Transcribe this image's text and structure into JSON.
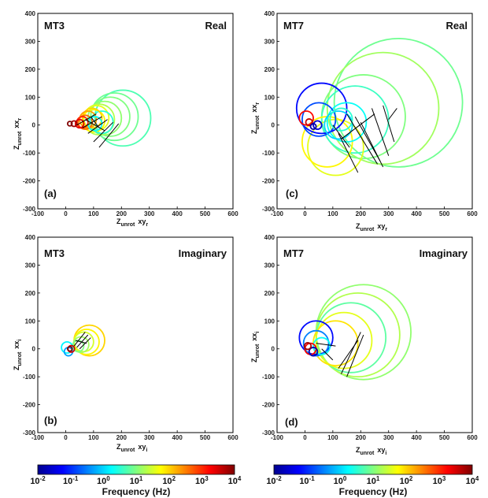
{
  "chart_data": [
    {
      "panel": "(a)",
      "station": "MT3",
      "component": "Real",
      "type": "scatter",
      "xlabel_main": "Z",
      "xlabel_sub": "unrot",
      "xlabel_tail": "xy",
      "xlabel_tail_sub": "r",
      "ylabel_main": "Z",
      "ylabel_sub": "unrot",
      "ylabel_tail": "xx",
      "ylabel_tail_sub": "r",
      "xlim": [
        -100,
        600
      ],
      "ylim": [
        -300,
        400
      ],
      "xticks": [
        "-100",
        "0",
        "100",
        "200",
        "300",
        "400",
        "500",
        "600"
      ],
      "yticks": [
        "400",
        "300",
        "200",
        "100",
        "0",
        "-100",
        "-200",
        "-300"
      ],
      "circles": [
        {
          "x": 205,
          "y": 25,
          "r": 100,
          "logf": 0.7
        },
        {
          "x": 175,
          "y": 30,
          "r": 85,
          "logf": 0.9
        },
        {
          "x": 160,
          "y": 30,
          "r": 70,
          "logf": 1.0
        },
        {
          "x": 140,
          "y": 25,
          "r": 60,
          "logf": 1.1
        },
        {
          "x": 120,
          "y": 20,
          "r": 55,
          "logf": 1.3
        },
        {
          "x": 110,
          "y": 25,
          "r": 45,
          "logf": 1.6
        },
        {
          "x": 100,
          "y": 15,
          "r": 40,
          "logf": 1.8
        },
        {
          "x": 95,
          "y": 25,
          "r": 35,
          "logf": 2.0
        },
        {
          "x": 80,
          "y": 20,
          "r": 30,
          "logf": 2.3
        },
        {
          "x": 70,
          "y": 10,
          "r": 25,
          "logf": 2.6
        },
        {
          "x": 60,
          "y": 10,
          "r": 20,
          "logf": 3.0
        },
        {
          "x": 50,
          "y": 5,
          "r": 15,
          "logf": 3.4
        },
        {
          "x": 30,
          "y": 5,
          "r": 10,
          "logf": 3.8
        },
        {
          "x": 15,
          "y": 5,
          "r": 8,
          "logf": 4.0
        },
        {
          "x": 130,
          "y": 10,
          "r": 40,
          "logf": 0.5
        },
        {
          "x": 105,
          "y": 5,
          "r": 25,
          "logf": 0.3
        }
      ],
      "segments": [
        {
          "x1": 40,
          "y1": 0,
          "x2": 110,
          "y2": 40
        },
        {
          "x1": 60,
          "y1": -10,
          "x2": 130,
          "y2": 30
        },
        {
          "x1": 80,
          "y1": -30,
          "x2": 150,
          "y2": 20
        },
        {
          "x1": 100,
          "y1": -60,
          "x2": 170,
          "y2": 10
        },
        {
          "x1": 120,
          "y1": -80,
          "x2": 190,
          "y2": 5
        },
        {
          "x1": 70,
          "y1": 20,
          "x2": 140,
          "y2": -20
        },
        {
          "x1": 90,
          "y1": 30,
          "x2": 120,
          "y2": -10
        }
      ]
    },
    {
      "panel": "(b)",
      "station": "MT3",
      "component": "Imaginary",
      "type": "scatter",
      "xlabel_main": "Z",
      "xlabel_sub": "unrot",
      "xlabel_tail": "xy",
      "xlabel_tail_sub": "i",
      "ylabel_main": "Z",
      "ylabel_sub": "unrot",
      "ylabel_tail": "xx",
      "ylabel_tail_sub": "i",
      "xlim": [
        -100,
        600
      ],
      "ylim": [
        -300,
        400
      ],
      "xticks": [
        "-100",
        "0",
        "100",
        "200",
        "300",
        "400",
        "500",
        "600"
      ],
      "yticks": [
        "400",
        "300",
        "200",
        "100",
        "0",
        "-100",
        "-200",
        "-300"
      ],
      "circles": [
        {
          "x": 85,
          "y": 30,
          "r": 55,
          "logf": 2.0
        },
        {
          "x": 75,
          "y": 25,
          "r": 45,
          "logf": 1.8
        },
        {
          "x": 65,
          "y": 25,
          "r": 35,
          "logf": 1.5
        },
        {
          "x": 55,
          "y": 15,
          "r": 28,
          "logf": 1.2
        },
        {
          "x": 45,
          "y": 10,
          "r": 20,
          "logf": 1.0
        },
        {
          "x": 5,
          "y": 5,
          "r": 20,
          "logf": 0.2
        },
        {
          "x": 10,
          "y": -10,
          "r": 15,
          "logf": -0.3
        },
        {
          "x": 20,
          "y": 0,
          "r": 12,
          "logf": 3.5
        },
        {
          "x": 15,
          "y": 0,
          "r": 8,
          "logf": 4.0
        }
      ],
      "segments": [
        {
          "x1": 30,
          "y1": 10,
          "x2": 70,
          "y2": 60
        },
        {
          "x1": 40,
          "y1": 5,
          "x2": 80,
          "y2": 50
        },
        {
          "x1": 50,
          "y1": 0,
          "x2": 90,
          "y2": 40
        },
        {
          "x1": 35,
          "y1": 30,
          "x2": 75,
          "y2": 20
        }
      ]
    },
    {
      "panel": "(c)",
      "station": "MT7",
      "component": "Real",
      "type": "scatter",
      "xlabel_main": "Z",
      "xlabel_sub": "unrot",
      "xlabel_tail": "xy",
      "xlabel_tail_sub": "r",
      "ylabel_main": "Z",
      "ylabel_sub": "unrot",
      "ylabel_tail": "xx",
      "ylabel_tail_sub": "r",
      "xlim": [
        -100,
        600
      ],
      "ylim": [
        -300,
        400
      ],
      "xticks": [
        "-100",
        "0",
        "100",
        "200",
        "300",
        "400",
        "500",
        "600"
      ],
      "yticks": [
        "400",
        "300",
        "200",
        "100",
        "0",
        "-100",
        "-200",
        "-300"
      ],
      "circles": [
        {
          "x": 335,
          "y": 80,
          "r": 230,
          "logf": 0.9
        },
        {
          "x": 280,
          "y": 60,
          "r": 200,
          "logf": 1.2
        },
        {
          "x": 210,
          "y": 30,
          "r": 150,
          "logf": 1.0
        },
        {
          "x": 180,
          "y": 20,
          "r": 120,
          "logf": 0.6
        },
        {
          "x": 110,
          "y": -80,
          "r": 100,
          "logf": 1.6
        },
        {
          "x": 80,
          "y": -60,
          "r": 90,
          "logf": 1.8
        },
        {
          "x": 60,
          "y": 60,
          "r": 90,
          "logf": -1.2
        },
        {
          "x": 50,
          "y": 20,
          "r": 60,
          "logf": -0.8
        },
        {
          "x": 150,
          "y": 10,
          "r": 70,
          "logf": 0.3
        },
        {
          "x": 120,
          "y": 0,
          "r": 50,
          "logf": 0.0
        },
        {
          "x": 130,
          "y": 20,
          "r": 40,
          "logf": 0.5
        },
        {
          "x": 5,
          "y": 25,
          "r": 25,
          "logf": 3.2
        },
        {
          "x": 15,
          "y": 10,
          "r": 12,
          "logf": 3.6
        },
        {
          "x": 45,
          "y": 0,
          "r": 15,
          "logf": -1.5
        },
        {
          "x": 30,
          "y": -5,
          "r": 10,
          "logf": -1.8
        }
      ],
      "segments": [
        {
          "x1": 120,
          "y1": -30,
          "x2": 190,
          "y2": -170
        },
        {
          "x1": 150,
          "y1": 40,
          "x2": 260,
          "y2": -140
        },
        {
          "x1": 180,
          "y1": 30,
          "x2": 270,
          "y2": -130
        },
        {
          "x1": 200,
          "y1": 10,
          "x2": 280,
          "y2": -150
        },
        {
          "x1": 240,
          "y1": 60,
          "x2": 300,
          "y2": -110
        },
        {
          "x1": 280,
          "y1": 70,
          "x2": 320,
          "y2": -60
        },
        {
          "x1": 100,
          "y1": 0,
          "x2": 160,
          "y2": -80
        },
        {
          "x1": 130,
          "y1": -50,
          "x2": 250,
          "y2": 40
        },
        {
          "x1": 300,
          "y1": 20,
          "x2": 330,
          "y2": 60
        }
      ]
    },
    {
      "panel": "(d)",
      "station": "MT7",
      "component": "Imaginary",
      "type": "scatter",
      "xlabel_main": "Z",
      "xlabel_sub": "unrot",
      "xlabel_tail": "xy",
      "xlabel_tail_sub": "i",
      "ylabel_main": "Z",
      "ylabel_sub": "unrot",
      "ylabel_tail": "xx",
      "ylabel_tail_sub": "i",
      "xlim": [
        -100,
        600
      ],
      "ylim": [
        -300,
        400
      ],
      "xticks": [
        "-100",
        "0",
        "100",
        "200",
        "300",
        "400",
        "500",
        "600"
      ],
      "yticks": [
        "400",
        "300",
        "200",
        "100",
        "0",
        "-100",
        "-200",
        "-300"
      ],
      "circles": [
        {
          "x": 210,
          "y": 60,
          "r": 170,
          "logf": 1.1
        },
        {
          "x": 190,
          "y": 50,
          "r": 150,
          "logf": 1.3
        },
        {
          "x": 165,
          "y": 40,
          "r": 125,
          "logf": 0.8
        },
        {
          "x": 140,
          "y": 30,
          "r": 100,
          "logf": 1.6
        },
        {
          "x": 110,
          "y": 20,
          "r": 80,
          "logf": 1.9
        },
        {
          "x": 40,
          "y": 40,
          "r": 60,
          "logf": -1.2
        },
        {
          "x": 40,
          "y": 20,
          "r": 45,
          "logf": -0.5
        },
        {
          "x": 60,
          "y": 10,
          "r": 30,
          "logf": 0.3
        },
        {
          "x": 20,
          "y": 0,
          "r": 20,
          "logf": 3.3
        },
        {
          "x": 10,
          "y": 10,
          "r": 12,
          "logf": 3.8
        },
        {
          "x": 30,
          "y": -10,
          "r": 15,
          "logf": -1.7
        }
      ],
      "segments": [
        {
          "x1": 130,
          "y1": -90,
          "x2": 200,
          "y2": 60
        },
        {
          "x1": 150,
          "y1": -100,
          "x2": 210,
          "y2": 50
        },
        {
          "x1": 120,
          "y1": -70,
          "x2": 190,
          "y2": 30
        },
        {
          "x1": 40,
          "y1": 20,
          "x2": 110,
          "y2": 10
        },
        {
          "x1": 60,
          "y1": 0,
          "x2": 100,
          "y2": -40
        }
      ]
    }
  ],
  "colorbars": [
    {
      "ticks_base": [
        "10",
        "10",
        "10",
        "10",
        "10",
        "10",
        "10"
      ],
      "ticks_exp": [
        "-2",
        "-1",
        "0",
        "1",
        "2",
        "3",
        "4"
      ],
      "label": "Frequency (Hz)",
      "range_log": [
        -2,
        4
      ],
      "colormap": "jet"
    },
    {
      "ticks_base": [
        "10",
        "10",
        "10",
        "10",
        "10",
        "10",
        "10"
      ],
      "ticks_exp": [
        "-2",
        "-1",
        "0",
        "1",
        "2",
        "3",
        "4"
      ],
      "label": "Frequency (Hz)",
      "range_log": [
        -2,
        4
      ],
      "colormap": "jet"
    }
  ]
}
